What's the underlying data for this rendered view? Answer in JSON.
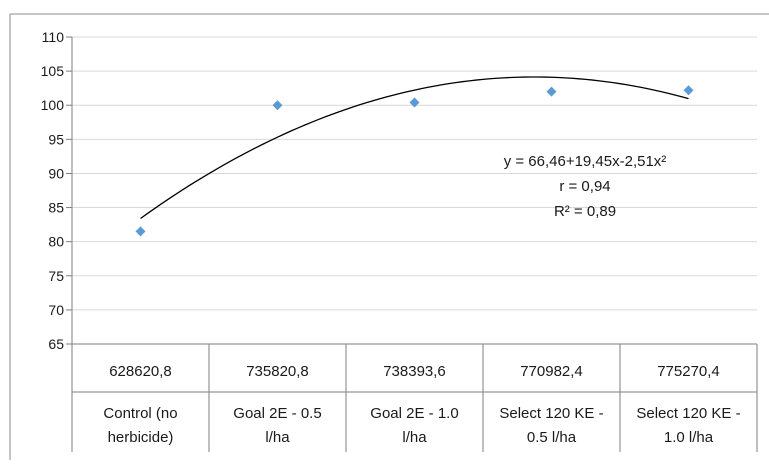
{
  "chart_data": {
    "type": "scatter",
    "ylim": [
      65,
      110
    ],
    "yticks": [
      65,
      70,
      75,
      80,
      85,
      90,
      95,
      100,
      105,
      110
    ],
    "grid": "horizontal",
    "categories": [
      {
        "value_label": "628620,8",
        "name_lines": [
          "Control (no",
          "herbicide)"
        ]
      },
      {
        "value_label": "735820,8",
        "name_lines": [
          "Goal 2E - 0.5",
          "l/ha"
        ]
      },
      {
        "value_label": "738393,6",
        "name_lines": [
          "Goal 2E - 1.0",
          "l/ha"
        ]
      },
      {
        "value_label": "770982,4",
        "name_lines": [
          "Select 120 KE -",
          "0.5 l/ha"
        ]
      },
      {
        "value_label": "775270,4",
        "name_lines": [
          "Select 120 KE -",
          "1.0 l/ha"
        ]
      }
    ],
    "series": [
      {
        "values": [
          81.5,
          100.0,
          100.4,
          102.0,
          102.2
        ],
        "color": "#5b9bd5",
        "marker": "diamond"
      }
    ],
    "trendline": {
      "type": "polynomial",
      "coefficients": [
        66.46,
        19.45,
        -2.51
      ],
      "color": "#000000"
    },
    "annotations": {
      "equation": "y = 66,46+19,45x-2,51x²",
      "r": "r =  0,94",
      "r2": "R² = 0,89"
    }
  }
}
